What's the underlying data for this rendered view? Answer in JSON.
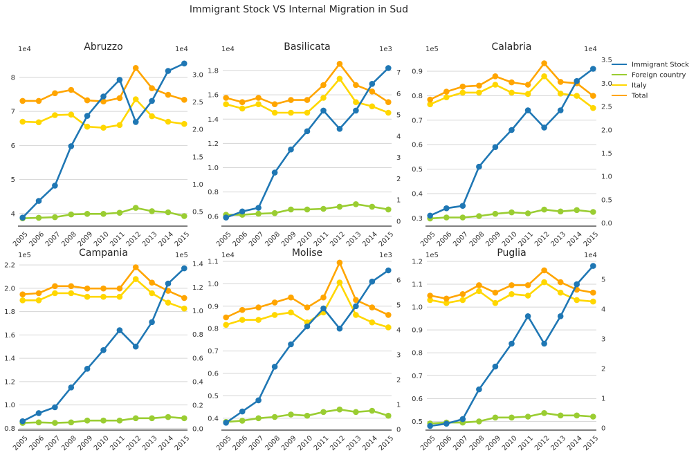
{
  "chart_data": {
    "title": "Immigrant Stock VS Internal Migration in Sud",
    "type": "line",
    "x": [
      "2005",
      "2006",
      "2007",
      "2008",
      "2009",
      "2010",
      "2011",
      "2012",
      "2013",
      "2014",
      "2015"
    ],
    "legend": {
      "placement": "right",
      "entries": [
        {
          "name": "Immigrant Stock",
          "color": "#1f77b4"
        },
        {
          "name": "Foreign country",
          "color": "#9acd32"
        },
        {
          "name": "Italy",
          "color": "#ffd700"
        },
        {
          "name": "Total",
          "color": "#ffa500"
        }
      ]
    },
    "panels": [
      {
        "title": "Abruzzo",
        "left_axis": {
          "multiplier": "1e4",
          "ylim": [
            3.65,
            8.65
          ],
          "ticks": [
            "4",
            "5",
            "6",
            "7",
            "8"
          ],
          "tick_values": [
            4,
            5,
            6,
            7,
            8
          ]
        },
        "right_axis": {
          "multiplier": "1e4",
          "ylim": [
            0.25,
            3.35
          ],
          "ticks": [
            "0.5",
            "1.0",
            "1.5",
            "2.0",
            "2.5",
            "3.0"
          ],
          "tick_values": [
            0.5,
            1.0,
            1.5,
            2.0,
            2.5,
            3.0
          ]
        },
        "series": [
          {
            "name": "Immigrant Stock",
            "axis": "left",
            "values": [
              3.88,
              4.37,
              4.82,
              5.98,
              6.87,
              7.44,
              7.93,
              6.69,
              7.31,
              8.19,
              8.41
            ]
          },
          {
            "name": "Foreign country",
            "axis": "right",
            "values": [
              0.38,
              0.39,
              0.4,
              0.45,
              0.46,
              0.46,
              0.48,
              0.57,
              0.51,
              0.49,
              0.42
            ]
          },
          {
            "name": "Italy",
            "axis": "right",
            "values": [
              2.14,
              2.13,
              2.26,
              2.27,
              2.05,
              2.03,
              2.08,
              2.55,
              2.24,
              2.14,
              2.1
            ]
          },
          {
            "name": "Total",
            "axis": "right",
            "values": [
              2.52,
              2.52,
              2.66,
              2.72,
              2.53,
              2.51,
              2.57,
              3.12,
              2.75,
              2.63,
              2.54
            ]
          }
        ]
      },
      {
        "title": "Basilicata",
        "left_axis": {
          "multiplier": "1e4",
          "ylim": [
            0.525,
            1.925
          ],
          "ticks": [
            "0.6",
            "0.8",
            "1.0",
            "1.2",
            "1.4",
            "1.6",
            "1.8"
          ],
          "tick_values": [
            0.6,
            0.8,
            1.0,
            1.2,
            1.4,
            1.6,
            1.8
          ]
        },
        "right_axis": {
          "multiplier": "1e3",
          "ylim": [
            -0.2,
            7.8
          ],
          "ticks": [
            "0",
            "1",
            "2",
            "3",
            "4",
            "5",
            "6",
            "7"
          ],
          "tick_values": [
            0,
            1,
            2,
            3,
            4,
            5,
            6,
            7
          ]
        },
        "series": [
          {
            "name": "Immigrant Stock",
            "axis": "left",
            "values": [
              0.59,
              0.64,
              0.67,
              0.96,
              1.15,
              1.3,
              1.47,
              1.32,
              1.47,
              1.69,
              1.82
            ]
          },
          {
            "name": "Foreign country",
            "axis": "right",
            "values": [
              0.3,
              0.3,
              0.35,
              0.38,
              0.55,
              0.55,
              0.58,
              0.68,
              0.8,
              0.68,
              0.55
            ]
          },
          {
            "name": "Italy",
            "axis": "right",
            "values": [
              5.5,
              5.3,
              5.5,
              5.1,
              5.1,
              5.1,
              5.8,
              6.7,
              5.6,
              5.4,
              5.1
            ]
          },
          {
            "name": "Total",
            "axis": "right",
            "values": [
              5.8,
              5.6,
              5.8,
              5.5,
              5.7,
              5.7,
              6.4,
              7.4,
              6.4,
              6.1,
              5.6
            ]
          }
        ]
      },
      {
        "title": "Calabria",
        "left_axis": {
          "multiplier": "1e5",
          "ylim": [
            0.27,
            0.965
          ],
          "ticks": [
            "0.3",
            "0.4",
            "0.5",
            "0.6",
            "0.7",
            "0.8",
            "0.9"
          ],
          "tick_values": [
            0.3,
            0.4,
            0.5,
            0.6,
            0.7,
            0.8,
            0.9
          ]
        },
        "right_axis": {
          "multiplier": "1e4",
          "ylim": [
            -0.05,
            3.6
          ],
          "ticks": [
            "0.0",
            "0.5",
            "1.0",
            "1.5",
            "2.0",
            "2.5",
            "3.0",
            "3.5"
          ],
          "tick_values": [
            0.0,
            0.5,
            1.0,
            1.5,
            2.0,
            2.5,
            3.0,
            3.5
          ]
        },
        "series": [
          {
            "name": "Immigrant Stock",
            "axis": "left",
            "values": [
              0.31,
              0.34,
              0.35,
              0.51,
              0.59,
              0.66,
              0.74,
              0.67,
              0.74,
              0.86,
              0.91
            ]
          },
          {
            "name": "Foreign country",
            "axis": "right",
            "values": [
              0.1,
              0.12,
              0.12,
              0.15,
              0.2,
              0.23,
              0.21,
              0.29,
              0.25,
              0.28,
              0.24
            ]
          },
          {
            "name": "Italy",
            "axis": "right",
            "values": [
              2.55,
              2.7,
              2.8,
              2.8,
              2.97,
              2.8,
              2.77,
              3.15,
              2.78,
              2.73,
              2.47
            ]
          },
          {
            "name": "Total",
            "axis": "right",
            "values": [
              2.65,
              2.82,
              2.93,
              2.95,
              3.15,
              3.02,
              2.97,
              3.43,
              3.03,
              3.0,
              2.73
            ]
          }
        ]
      },
      {
        "title": "Campania",
        "left_axis": {
          "multiplier": "1e5",
          "ylim": [
            0.79,
            2.23
          ],
          "ticks": [
            "0.8",
            "1.0",
            "1.2",
            "1.4",
            "1.6",
            "1.8",
            "2.0",
            "2.2"
          ],
          "tick_values": [
            0.8,
            1.0,
            1.2,
            1.4,
            1.6,
            1.8,
            2.0,
            2.2
          ]
        },
        "right_axis": {
          "multiplier": "1e5",
          "ylim": [
            -0.005,
            1.42
          ],
          "ticks": [
            "0.0",
            "0.2",
            "0.4",
            "0.6",
            "0.8",
            "1.0",
            "1.2",
            "1.4"
          ],
          "tick_values": [
            0.0,
            0.2,
            0.4,
            0.6,
            0.8,
            1.0,
            1.2,
            1.4
          ]
        },
        "series": [
          {
            "name": "Immigrant Stock",
            "axis": "left",
            "values": [
              0.86,
              0.93,
              0.98,
              1.15,
              1.31,
              1.47,
              1.64,
              1.5,
              1.71,
              2.04,
              2.17
            ]
          },
          {
            "name": "Foreign country",
            "axis": "right",
            "values": [
              0.05,
              0.055,
              0.05,
              0.055,
              0.07,
              0.07,
              0.07,
              0.09,
              0.09,
              0.1,
              0.09
            ]
          },
          {
            "name": "Italy",
            "axis": "right",
            "values": [
              1.09,
              1.09,
              1.15,
              1.15,
              1.12,
              1.12,
              1.12,
              1.27,
              1.15,
              1.07,
              1.02
            ]
          },
          {
            "name": "Total",
            "axis": "right",
            "values": [
              1.14,
              1.15,
              1.21,
              1.21,
              1.19,
              1.19,
              1.19,
              1.37,
              1.24,
              1.17,
              1.11
            ]
          }
        ]
      },
      {
        "title": "Molise",
        "left_axis": {
          "multiplier": "1e4",
          "ylim": [
            0.35,
            1.1
          ],
          "ticks": [
            "0.4",
            "0.5",
            "0.6",
            "0.7",
            "0.8",
            "0.9",
            "1.0",
            "1.1"
          ],
          "tick_values": [
            0.4,
            0.5,
            0.6,
            0.7,
            0.8,
            0.9,
            1.0,
            1.1
          ]
        },
        "right_axis": {
          "multiplier": "1e3",
          "ylim": [
            0.0,
            6.75
          ],
          "ticks": [
            "0",
            "1",
            "2",
            "3",
            "4",
            "5",
            "6"
          ],
          "tick_values": [
            0,
            1,
            2,
            3,
            4,
            5,
            6
          ]
        },
        "series": [
          {
            "name": "Immigrant Stock",
            "axis": "left",
            "values": [
              0.38,
              0.43,
              0.48,
              0.63,
              0.73,
              0.81,
              0.89,
              0.8,
              0.9,
              1.01,
              1.06
            ]
          },
          {
            "name": "Foreign country",
            "axis": "right",
            "values": [
              0.3,
              0.35,
              0.45,
              0.5,
              0.6,
              0.55,
              0.7,
              0.8,
              0.7,
              0.75,
              0.55
            ]
          },
          {
            "name": "Italy",
            "axis": "right",
            "values": [
              4.2,
              4.4,
              4.4,
              4.6,
              4.7,
              4.3,
              4.7,
              5.9,
              4.6,
              4.3,
              4.1
            ]
          },
          {
            "name": "Total",
            "axis": "right",
            "values": [
              4.5,
              4.8,
              4.9,
              5.1,
              5.3,
              4.9,
              5.3,
              6.7,
              5.2,
              4.9,
              4.6
            ]
          }
        ]
      },
      {
        "title": "Puglia",
        "left_axis": {
          "multiplier": "1e5",
          "ylim": [
            0.465,
            1.2
          ],
          "ticks": [
            "0.5",
            "0.6",
            "0.7",
            "0.8",
            "0.9",
            "1.0",
            "1.1",
            "1.2"
          ],
          "tick_values": [
            0.5,
            0.6,
            0.7,
            0.8,
            0.9,
            1.0,
            1.1,
            1.2
          ]
        },
        "right_axis": {
          "multiplier": "1e4",
          "ylim": [
            -0.05,
            5.6
          ],
          "ticks": [
            "0",
            "1",
            "2",
            "3",
            "4",
            "5"
          ],
          "tick_values": [
            0,
            1,
            2,
            3,
            4,
            5
          ]
        },
        "series": [
          {
            "name": "Immigrant Stock",
            "axis": "left",
            "values": [
              0.48,
              0.49,
              0.51,
              0.64,
              0.74,
              0.84,
              0.96,
              0.84,
              0.96,
              1.1,
              1.18
            ]
          },
          {
            "name": "Foreign country",
            "axis": "right",
            "values": [
              0.15,
              0.18,
              0.18,
              0.22,
              0.35,
              0.35,
              0.38,
              0.5,
              0.42,
              0.42,
              0.38
            ]
          },
          {
            "name": "Italy",
            "axis": "right",
            "values": [
              4.3,
              4.2,
              4.3,
              4.6,
              4.2,
              4.5,
              4.45,
              4.9,
              4.55,
              4.3,
              4.25
            ]
          },
          {
            "name": "Total",
            "axis": "right",
            "values": [
              4.45,
              4.35,
              4.5,
              4.8,
              4.55,
              4.8,
              4.8,
              5.3,
              4.9,
              4.65,
              4.55
            ]
          }
        ]
      }
    ]
  }
}
